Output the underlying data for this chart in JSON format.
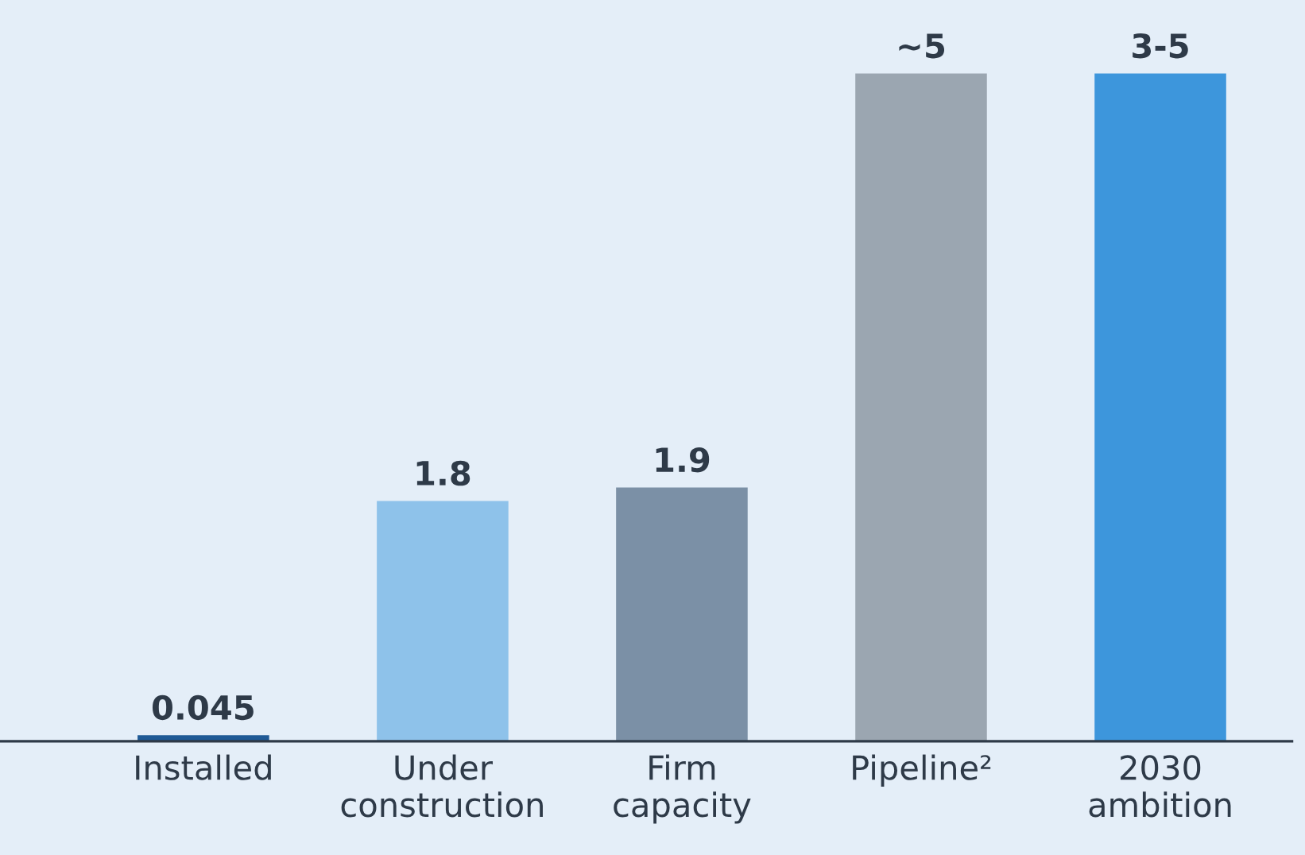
{
  "chart_data": {
    "type": "bar",
    "categories": [
      "Installed",
      "Under\nconstruction",
      "Firm\ncapacity",
      "Pipeline²",
      "2030\nambition"
    ],
    "values": [
      0.045,
      1.8,
      1.9,
      5,
      5
    ],
    "colors": [
      "#1f5a96",
      "#8ec2ea",
      "#7b90a6",
      "#9ba6b1",
      "#3d96dc"
    ],
    "value_labels": [
      "0.045",
      "1.8",
      "1.9",
      "~5",
      "3-5"
    ],
    "grid": false,
    "legend": false,
    "tick_labels": "x"
  }
}
